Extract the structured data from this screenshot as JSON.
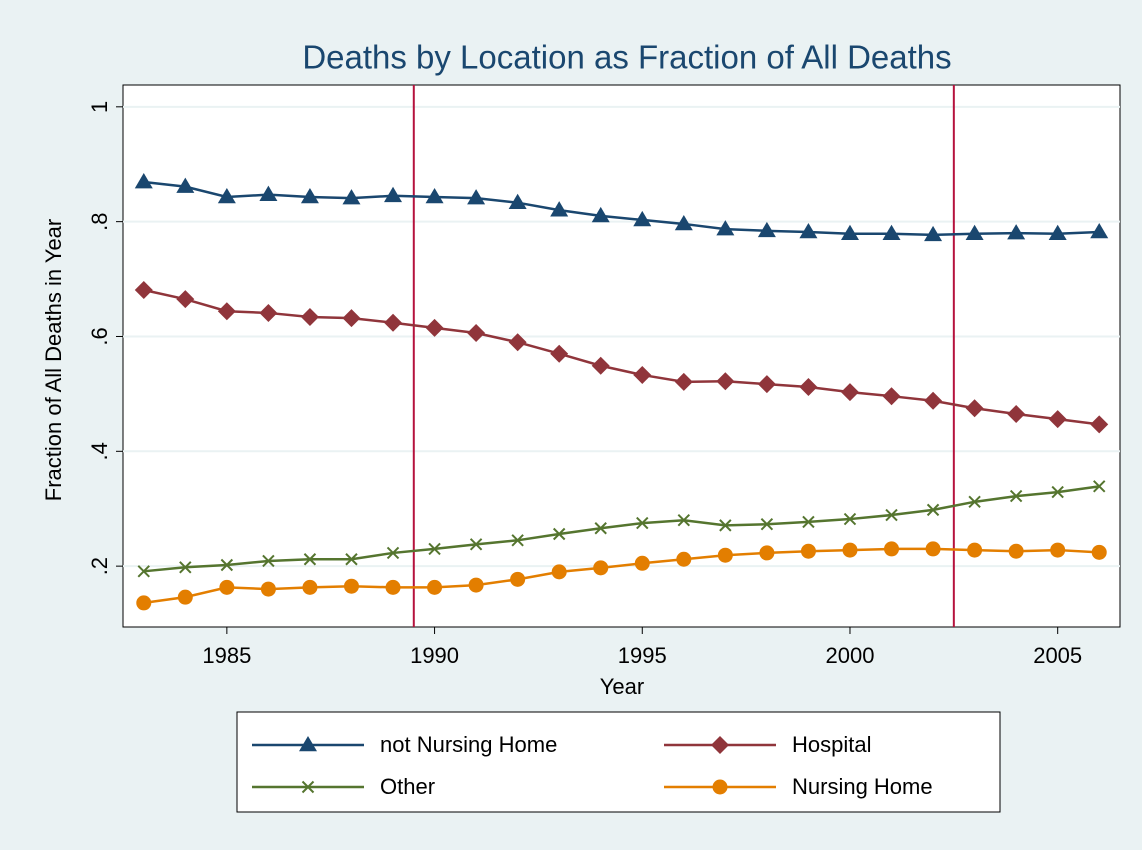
{
  "chart_data": {
    "type": "line",
    "title": "Deaths by Location as Fraction of All Deaths",
    "x_label": "Year",
    "y_label": "Fraction of All Deaths in Year",
    "x": [
      1983,
      1984,
      1985,
      1986,
      1987,
      1988,
      1989,
      1990,
      1991,
      1992,
      1993,
      1994,
      1995,
      1996,
      1997,
      1998,
      1999,
      2000,
      2001,
      2002,
      2003,
      2004,
      2005,
      2006
    ],
    "series": [
      {
        "name": "not Nursing Home",
        "color": "#1a476f",
        "marker": "triangle",
        "values": [
          0.869,
          0.861,
          0.843,
          0.847,
          0.843,
          0.841,
          0.845,
          0.843,
          0.841,
          0.833,
          0.82,
          0.81,
          0.803,
          0.796,
          0.787,
          0.784,
          0.782,
          0.779,
          0.779,
          0.777,
          0.779,
          0.78,
          0.779,
          0.782
        ]
      },
      {
        "name": "Hospital",
        "color": "#90353b",
        "marker": "diamond",
        "values": [
          0.681,
          0.665,
          0.644,
          0.641,
          0.634,
          0.632,
          0.624,
          0.615,
          0.606,
          0.59,
          0.57,
          0.549,
          0.533,
          0.521,
          0.522,
          0.517,
          0.512,
          0.503,
          0.496,
          0.488,
          0.475,
          0.465,
          0.456,
          0.447
        ]
      },
      {
        "name": "Other",
        "color": "#55752f",
        "marker": "x",
        "values": [
          0.191,
          0.198,
          0.202,
          0.209,
          0.212,
          0.212,
          0.223,
          0.23,
          0.238,
          0.245,
          0.256,
          0.266,
          0.275,
          0.28,
          0.271,
          0.273,
          0.277,
          0.282,
          0.289,
          0.298,
          0.312,
          0.322,
          0.329,
          0.339
        ]
      },
      {
        "name": "Nursing Home",
        "color": "#e37e00",
        "marker": "circle",
        "values": [
          0.136,
          0.146,
          0.163,
          0.16,
          0.163,
          0.165,
          0.163,
          0.163,
          0.167,
          0.177,
          0.19,
          0.197,
          0.205,
          0.212,
          0.219,
          0.223,
          0.226,
          0.228,
          0.23,
          0.23,
          0.228,
          0.226,
          0.228,
          0.224
        ]
      }
    ],
    "xlim": [
      1982.5,
      2006.5
    ],
    "ylim": [
      0.094,
      1.038
    ],
    "xticks": [
      1985,
      1990,
      1995,
      2000,
      2005
    ],
    "yticks": [
      {
        "value": 0.2,
        "label": ".2"
      },
      {
        "value": 0.4,
        "label": ".4"
      },
      {
        "value": 0.6,
        "label": ".6"
      },
      {
        "value": 0.8,
        "label": ".8"
      },
      1
    ],
    "xlines": [
      1989.5,
      2002.5
    ],
    "xline_color": "#b5123d",
    "grid": true,
    "legend": "bottom"
  }
}
